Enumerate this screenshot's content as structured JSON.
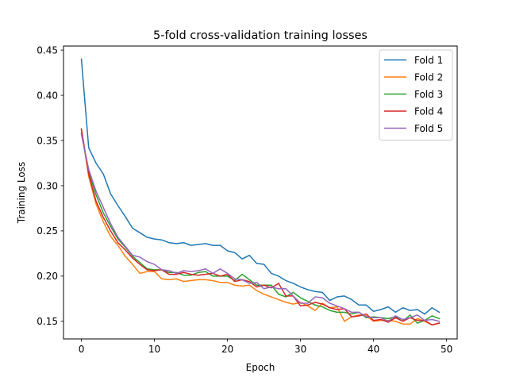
{
  "chart_data": {
    "type": "line",
    "title": "5-fold cross-validation training losses",
    "xlabel": "Epoch",
    "ylabel": "Training Loss",
    "xlim": [
      -2.45,
      51.45
    ],
    "ylim": [
      0.1305,
      0.4545
    ],
    "xticks": [
      0,
      10,
      20,
      30,
      40,
      50
    ],
    "yticks": [
      0.15,
      0.2,
      0.25,
      0.3,
      0.35,
      0.4,
      0.45
    ],
    "grid": false,
    "legend_position": "top-right",
    "x": [
      0,
      1,
      2,
      3,
      4,
      5,
      6,
      7,
      8,
      9,
      10,
      11,
      12,
      13,
      14,
      15,
      16,
      17,
      18,
      19,
      20,
      21,
      22,
      23,
      24,
      25,
      26,
      27,
      28,
      29,
      30,
      31,
      32,
      33,
      34,
      35,
      36,
      37,
      38,
      39,
      40,
      41,
      42,
      43,
      44,
      45,
      46,
      47,
      48,
      49
    ],
    "series": [
      {
        "name": "Fold 1",
        "color": "#1f77b4",
        "values": [
          0.44,
          0.342,
          0.325,
          0.313,
          0.291,
          0.278,
          0.266,
          0.253,
          0.248,
          0.243,
          0.241,
          0.24,
          0.237,
          0.236,
          0.237,
          0.234,
          0.235,
          0.236,
          0.234,
          0.234,
          0.228,
          0.226,
          0.219,
          0.223,
          0.214,
          0.213,
          0.203,
          0.2,
          0.195,
          0.192,
          0.188,
          0.185,
          0.183,
          0.182,
          0.173,
          0.177,
          0.178,
          0.174,
          0.168,
          0.168,
          0.161,
          0.163,
          0.166,
          0.16,
          0.165,
          0.162,
          0.163,
          0.158,
          0.165,
          0.16
        ]
      },
      {
        "name": "Fold 2",
        "color": "#ff7f0e",
        "values": [
          0.362,
          0.31,
          0.28,
          0.26,
          0.244,
          0.234,
          0.222,
          0.213,
          0.203,
          0.205,
          0.205,
          0.197,
          0.196,
          0.197,
          0.194,
          0.195,
          0.196,
          0.196,
          0.195,
          0.193,
          0.193,
          0.19,
          0.189,
          0.19,
          0.184,
          0.18,
          0.177,
          0.174,
          0.171,
          0.169,
          0.171,
          0.167,
          0.162,
          0.17,
          0.165,
          0.166,
          0.15,
          0.155,
          0.157,
          0.156,
          0.15,
          0.151,
          0.151,
          0.15,
          0.147,
          0.147,
          0.153,
          0.15,
          0.146,
          0.148
        ]
      },
      {
        "name": "Fold 3",
        "color": "#2ca02c",
        "values": [
          0.358,
          0.316,
          0.29,
          0.27,
          0.255,
          0.241,
          0.232,
          0.222,
          0.215,
          0.208,
          0.207,
          0.207,
          0.204,
          0.204,
          0.201,
          0.201,
          0.204,
          0.205,
          0.2,
          0.2,
          0.2,
          0.195,
          0.202,
          0.196,
          0.19,
          0.19,
          0.19,
          0.18,
          0.177,
          0.182,
          0.176,
          0.172,
          0.168,
          0.166,
          0.162,
          0.16,
          0.16,
          0.158,
          0.16,
          0.154,
          0.155,
          0.154,
          0.153,
          0.155,
          0.15,
          0.157,
          0.148,
          0.151,
          0.156,
          0.153
        ]
      },
      {
        "name": "Fold 4",
        "color": "#d62728",
        "values": [
          0.363,
          0.313,
          0.283,
          0.265,
          0.25,
          0.237,
          0.229,
          0.22,
          0.213,
          0.207,
          0.206,
          0.207,
          0.202,
          0.202,
          0.204,
          0.202,
          0.201,
          0.202,
          0.203,
          0.2,
          0.202,
          0.194,
          0.196,
          0.194,
          0.188,
          0.19,
          0.187,
          0.192,
          0.178,
          0.178,
          0.167,
          0.168,
          0.171,
          0.169,
          0.165,
          0.163,
          0.164,
          0.155,
          0.156,
          0.158,
          0.151,
          0.152,
          0.149,
          0.154,
          0.15,
          0.154,
          0.151,
          0.151,
          0.146,
          0.148
        ]
      },
      {
        "name": "Fold 5",
        "color": "#9467bd",
        "values": [
          0.357,
          0.318,
          0.294,
          0.276,
          0.258,
          0.243,
          0.233,
          0.223,
          0.221,
          0.216,
          0.213,
          0.207,
          0.206,
          0.203,
          0.206,
          0.205,
          0.206,
          0.208,
          0.203,
          0.208,
          0.203,
          0.197,
          0.196,
          0.192,
          0.193,
          0.186,
          0.188,
          0.186,
          0.186,
          0.178,
          0.17,
          0.17,
          0.177,
          0.176,
          0.17,
          0.167,
          0.164,
          0.16,
          0.16,
          0.155,
          0.154,
          0.154,
          0.15,
          0.156,
          0.152,
          0.154,
          0.157,
          0.151,
          0.152,
          0.15
        ]
      }
    ]
  }
}
